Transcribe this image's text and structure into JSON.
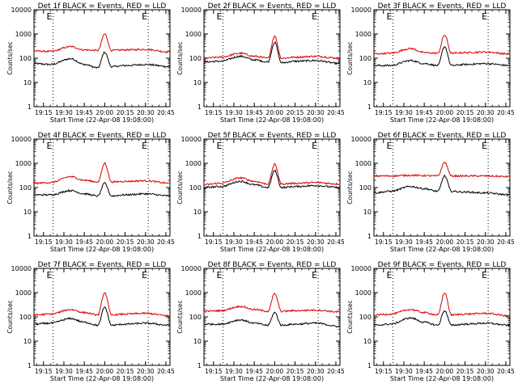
{
  "figure": {
    "ylabel": "Counts/sec",
    "xlabel": "Start Time (22-Apr-08 19:08:00)",
    "x_tick_labels": [
      "19:15",
      "19:30",
      "19:45",
      "20:00",
      "20:15",
      "20:30",
      "20:45"
    ],
    "y_tick_labels": [
      "1",
      "10",
      "100",
      "1000",
      "10000"
    ],
    "colors": {
      "events": "#000000",
      "lld": "#dd0000",
      "axes": "#000000",
      "background": "#ffffff"
    }
  },
  "chart_data": [
    {
      "type": "line",
      "title": "Det 1f BLACK = Events, RED = LLD",
      "xlabel": "Start Time (22-Apr-08 19:08:00)",
      "ylabel": "Counts/sec",
      "x_unit": "time (HH:MM)",
      "xlim": [
        "19:08",
        "20:48"
      ],
      "ylim": [
        1,
        10000
      ],
      "y_scale": "log",
      "x_ticks": [
        "19:15",
        "19:30",
        "19:45",
        "20:00",
        "20:15",
        "20:30",
        "20:45"
      ],
      "y_ticks": [
        1,
        10,
        100,
        1000,
        10000
      ],
      "markers": [
        "19:22",
        "20:32"
      ],
      "marker_label": "E",
      "series": [
        {
          "color": "#000000",
          "x": [
            "19:08",
            "19:20",
            "19:35",
            "19:45",
            "19:55",
            "20:00",
            "20:05",
            "20:15",
            "20:30",
            "20:48"
          ],
          "values": [
            60,
            55,
            95,
            55,
            40,
            175,
            45,
            50,
            55,
            45
          ]
        },
        {
          "color": "#dd0000",
          "x": [
            "19:08",
            "19:20",
            "19:35",
            "19:45",
            "19:55",
            "20:00",
            "20:05",
            "20:15",
            "20:30",
            "20:48"
          ],
          "values": [
            200,
            190,
            300,
            220,
            210,
            1000,
            210,
            220,
            230,
            180
          ]
        }
      ]
    },
    {
      "type": "line",
      "title": "Det 2f BLACK = Events, RED = LLD",
      "xlabel": "Start Time (22-Apr-08 19:08:00)",
      "ylabel": "Counts/sec",
      "x_unit": "time (HH:MM)",
      "xlim": [
        "19:08",
        "20:48"
      ],
      "ylim": [
        1,
        10000
      ],
      "y_scale": "log",
      "x_ticks": [
        "19:15",
        "19:30",
        "19:45",
        "20:00",
        "20:15",
        "20:30",
        "20:45"
      ],
      "y_ticks": [
        1,
        10,
        100,
        1000,
        10000
      ],
      "markers": [
        "19:22",
        "20:32"
      ],
      "marker_label": "E",
      "series": [
        {
          "color": "#000000",
          "x": [
            "19:08",
            "19:20",
            "19:35",
            "19:45",
            "19:55",
            "20:00",
            "20:05",
            "20:15",
            "20:30",
            "20:48"
          ],
          "values": [
            70,
            75,
            120,
            85,
            70,
            450,
            65,
            75,
            80,
            60
          ]
        },
        {
          "color": "#dd0000",
          "x": [
            "19:08",
            "19:20",
            "19:35",
            "19:45",
            "19:55",
            "20:00",
            "20:05",
            "20:15",
            "20:30",
            "20:48"
          ],
          "values": [
            100,
            110,
            160,
            120,
            100,
            800,
            100,
            110,
            120,
            100
          ]
        }
      ]
    },
    {
      "type": "line",
      "title": "Det 3f BLACK = Events, RED = LLD",
      "xlabel": "Start Time (22-Apr-08 19:08:00)",
      "ylabel": "Counts/sec",
      "x_unit": "time (HH:MM)",
      "xlim": [
        "19:08",
        "20:48"
      ],
      "ylim": [
        1,
        10000
      ],
      "y_scale": "log",
      "x_ticks": [
        "19:15",
        "19:30",
        "19:45",
        "20:00",
        "20:15",
        "20:30",
        "20:45"
      ],
      "y_ticks": [
        1,
        10,
        100,
        1000,
        10000
      ],
      "markers": [
        "19:22",
        "20:32"
      ],
      "marker_label": "E",
      "series": [
        {
          "color": "#000000",
          "x": [
            "19:08",
            "19:20",
            "19:35",
            "19:45",
            "19:55",
            "20:00",
            "20:05",
            "20:15",
            "20:30",
            "20:48"
          ],
          "values": [
            50,
            50,
            80,
            60,
            50,
            300,
            50,
            55,
            60,
            50
          ]
        },
        {
          "color": "#dd0000",
          "x": [
            "19:08",
            "19:20",
            "19:35",
            "19:45",
            "19:55",
            "20:00",
            "20:05",
            "20:15",
            "20:30",
            "20:48"
          ],
          "values": [
            150,
            160,
            250,
            170,
            160,
            900,
            160,
            170,
            180,
            150
          ]
        }
      ]
    },
    {
      "type": "line",
      "title": "Det 4f BLACK = Events, RED = LLD",
      "xlabel": "Start Time (22-Apr-08 19:08:00)",
      "ylabel": "Counts/sec",
      "x_unit": "time (HH:MM)",
      "xlim": [
        "19:08",
        "20:48"
      ],
      "ylim": [
        1,
        10000
      ],
      "y_scale": "log",
      "x_ticks": [
        "19:15",
        "19:30",
        "19:45",
        "20:00",
        "20:15",
        "20:30",
        "20:45"
      ],
      "y_ticks": [
        1,
        10,
        100,
        1000,
        10000
      ],
      "markers": [
        "19:22",
        "20:32"
      ],
      "marker_label": "E",
      "series": [
        {
          "color": "#000000",
          "x": [
            "19:08",
            "19:20",
            "19:35",
            "19:45",
            "19:55",
            "20:00",
            "20:05",
            "20:15",
            "20:30",
            "20:48"
          ],
          "values": [
            50,
            50,
            75,
            55,
            45,
            150,
            45,
            50,
            55,
            45
          ]
        },
        {
          "color": "#dd0000",
          "x": [
            "19:08",
            "19:20",
            "19:35",
            "19:45",
            "19:55",
            "20:00",
            "20:05",
            "20:15",
            "20:30",
            "20:48"
          ],
          "values": [
            150,
            160,
            280,
            200,
            170,
            1000,
            170,
            180,
            190,
            150
          ]
        }
      ]
    },
    {
      "type": "line",
      "title": "Det 5f BLACK = Events, RED = LLD",
      "xlabel": "Start Time (22-Apr-08 19:08:00)",
      "ylabel": "Counts/sec",
      "x_unit": "time (HH:MM)",
      "xlim": [
        "19:08",
        "20:48"
      ],
      "ylim": [
        1,
        10000
      ],
      "y_scale": "log",
      "x_ticks": [
        "19:15",
        "19:30",
        "19:45",
        "20:00",
        "20:15",
        "20:30",
        "20:45"
      ],
      "y_ticks": [
        1,
        10,
        100,
        1000,
        10000
      ],
      "markers": [
        "19:22",
        "20:32"
      ],
      "marker_label": "E",
      "series": [
        {
          "color": "#000000",
          "x": [
            "19:08",
            "19:20",
            "19:35",
            "19:45",
            "19:55",
            "20:00",
            "20:05",
            "20:15",
            "20:30",
            "20:48"
          ],
          "values": [
            100,
            110,
            180,
            130,
            100,
            500,
            100,
            110,
            120,
            100
          ]
        },
        {
          "color": "#dd0000",
          "x": [
            "19:08",
            "19:20",
            "19:35",
            "19:45",
            "19:55",
            "20:00",
            "20:05",
            "20:15",
            "20:30",
            "20:48"
          ],
          "values": [
            130,
            150,
            250,
            180,
            140,
            900,
            140,
            150,
            160,
            140
          ]
        }
      ]
    },
    {
      "type": "line",
      "title": "Det 6f BLACK = Events, RED = LLD",
      "xlabel": "Start Time (22-Apr-08 19:08:00)",
      "ylabel": "Counts/sec",
      "x_unit": "time (HH:MM)",
      "xlim": [
        "19:08",
        "20:48"
      ],
      "ylim": [
        1,
        10000
      ],
      "y_scale": "log",
      "x_ticks": [
        "19:15",
        "19:30",
        "19:45",
        "20:00",
        "20:15",
        "20:30",
        "20:45"
      ],
      "y_ticks": [
        1,
        10,
        100,
        1000,
        10000
      ],
      "markers": [
        "19:22",
        "20:32"
      ],
      "marker_label": "E",
      "series": [
        {
          "color": "#000000",
          "x": [
            "19:08",
            "19:20",
            "19:35",
            "19:45",
            "19:55",
            "20:00",
            "20:05",
            "20:15",
            "20:30",
            "20:48"
          ],
          "values": [
            60,
            70,
            110,
            90,
            70,
            300,
            70,
            65,
            60,
            50
          ]
        },
        {
          "color": "#dd0000",
          "x": [
            "19:08",
            "19:20",
            "19:35",
            "19:45",
            "19:55",
            "20:00",
            "20:05",
            "20:15",
            "20:30",
            "20:48"
          ],
          "values": [
            300,
            300,
            320,
            310,
            300,
            1100,
            300,
            300,
            300,
            280
          ]
        }
      ]
    },
    {
      "type": "line",
      "title": "Det 7f BLACK = Events, RED = LLD",
      "xlabel": "Start Time (22-Apr-08 19:08:00)",
      "ylabel": "Counts/sec",
      "x_unit": "time (HH:MM)",
      "xlim": [
        "19:08",
        "20:48"
      ],
      "ylim": [
        1,
        10000
      ],
      "y_scale": "log",
      "x_ticks": [
        "19:15",
        "19:30",
        "19:45",
        "20:00",
        "20:15",
        "20:30",
        "20:45"
      ],
      "y_ticks": [
        1,
        10,
        100,
        1000,
        10000
      ],
      "markers": [
        "19:22",
        "20:32"
      ],
      "marker_label": "E",
      "series": [
        {
          "color": "#000000",
          "x": [
            "19:08",
            "19:20",
            "19:35",
            "19:45",
            "19:55",
            "20:00",
            "20:05",
            "20:15",
            "20:30",
            "20:48"
          ],
          "values": [
            50,
            55,
            85,
            60,
            45,
            250,
            45,
            50,
            55,
            45
          ]
        },
        {
          "color": "#dd0000",
          "x": [
            "19:08",
            "19:20",
            "19:35",
            "19:45",
            "19:55",
            "20:00",
            "20:05",
            "20:15",
            "20:30",
            "20:48"
          ],
          "values": [
            120,
            130,
            200,
            150,
            120,
            1000,
            120,
            130,
            140,
            110
          ]
        }
      ]
    },
    {
      "type": "line",
      "title": "Det 8f BLACK = Events, RED = LLD",
      "xlabel": "Start Time (22-Apr-08 19:08:00)",
      "ylabel": "Counts/sec",
      "x_unit": "time (HH:MM)",
      "xlim": [
        "19:08",
        "20:48"
      ],
      "ylim": [
        1,
        10000
      ],
      "y_scale": "log",
      "x_ticks": [
        "19:15",
        "19:30",
        "19:45",
        "20:00",
        "20:15",
        "20:30",
        "20:45"
      ],
      "y_ticks": [
        1,
        10,
        100,
        1000,
        10000
      ],
      "markers": [
        "19:22",
        "20:32"
      ],
      "marker_label": "E",
      "series": [
        {
          "color": "#000000",
          "x": [
            "19:08",
            "19:20",
            "19:35",
            "19:45",
            "19:55",
            "20:00",
            "20:05",
            "20:15",
            "20:30",
            "20:48"
          ],
          "values": [
            50,
            50,
            75,
            55,
            45,
            150,
            45,
            50,
            55,
            40
          ]
        },
        {
          "color": "#dd0000",
          "x": [
            "19:08",
            "19:20",
            "19:35",
            "19:45",
            "19:55",
            "20:00",
            "20:05",
            "20:15",
            "20:30",
            "20:48"
          ],
          "values": [
            170,
            180,
            270,
            200,
            170,
            900,
            170,
            180,
            190,
            160
          ]
        }
      ]
    },
    {
      "type": "line",
      "title": "Det 9f BLACK = Events, RED = LLD",
      "xlabel": "Start Time (22-Apr-08 19:08:00)",
      "ylabel": "Counts/sec",
      "x_unit": "time (HH:MM)",
      "xlim": [
        "19:08",
        "20:48"
      ],
      "ylim": [
        1,
        10000
      ],
      "y_scale": "log",
      "x_ticks": [
        "19:15",
        "19:30",
        "19:45",
        "20:00",
        "20:15",
        "20:30",
        "20:45"
      ],
      "y_ticks": [
        1,
        10,
        100,
        1000,
        10000
      ],
      "markers": [
        "19:22",
        "20:32"
      ],
      "marker_label": "E",
      "series": [
        {
          "color": "#000000",
          "x": [
            "19:08",
            "19:20",
            "19:35",
            "19:45",
            "19:55",
            "20:00",
            "20:05",
            "20:15",
            "20:30",
            "20:48"
          ],
          "values": [
            45,
            50,
            90,
            60,
            45,
            180,
            45,
            50,
            55,
            45
          ]
        },
        {
          "color": "#dd0000",
          "x": [
            "19:08",
            "19:20",
            "19:35",
            "19:45",
            "19:55",
            "20:00",
            "20:05",
            "20:15",
            "20:30",
            "20:48"
          ],
          "values": [
            120,
            130,
            200,
            150,
            120,
            1000,
            120,
            130,
            140,
            110
          ]
        }
      ]
    }
  ]
}
